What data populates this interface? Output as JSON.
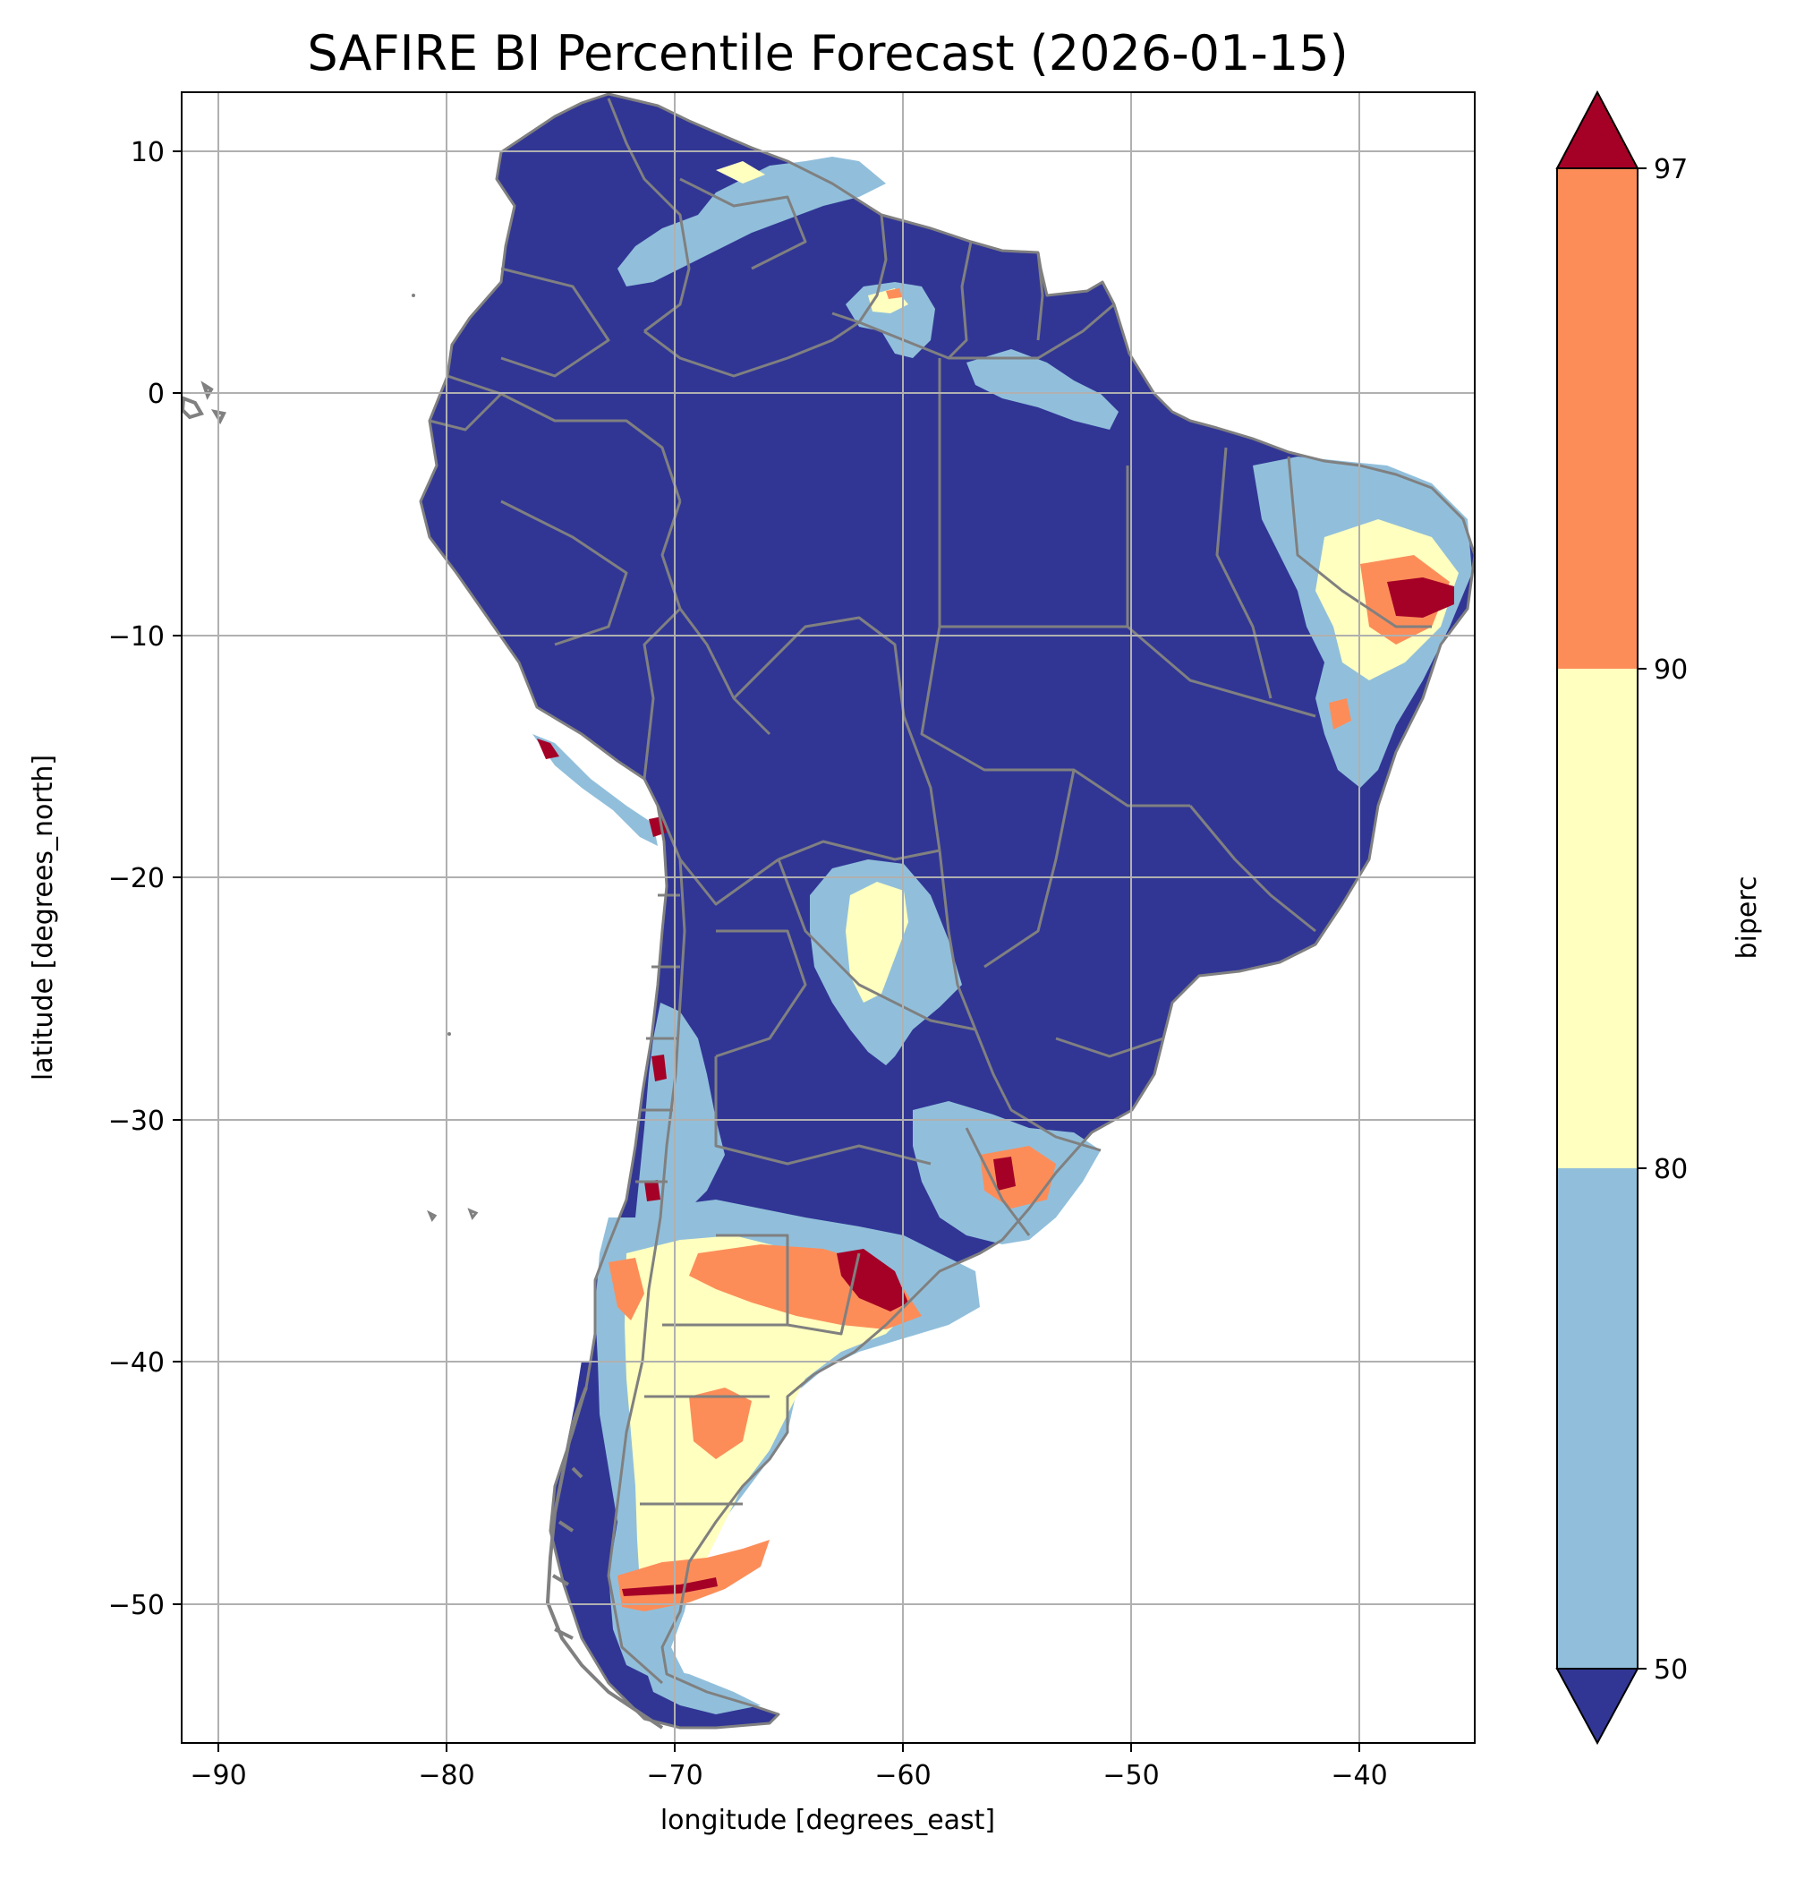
{
  "map": {
    "title": "SAFIRE BI Percentile Forecast (2026-01-15)",
    "xlabel": "longitude [degrees_east]",
    "ylabel": "latitude [degrees_north]",
    "x_ticks": [
      "−90",
      "−80",
      "−70",
      "−60",
      "−50",
      "−40"
    ],
    "y_ticks": [
      "10",
      "0",
      "−10",
      "−20",
      "−30",
      "−40",
      "−50"
    ],
    "x_tick_values": [
      -90,
      -80,
      -70,
      -60,
      -50,
      -40
    ],
    "y_tick_values": [
      10,
      0,
      -10,
      -20,
      -30,
      -40,
      -50
    ],
    "xlim": [
      -91.5,
      -35.0
    ],
    "ylim": [
      -55.8,
      12.4
    ],
    "grid": true,
    "border_color": "#808080",
    "ocean_color": "#ffffff"
  },
  "colorbar": {
    "label": "biperc",
    "tick_labels": [
      "97",
      "90",
      "80",
      "50"
    ],
    "bins": [
      {
        "range": "<50",
        "color": "#313695"
      },
      {
        "range": "50-80",
        "color": "#91bfdb"
      },
      {
        "range": "80-90",
        "color": "#ffffbf"
      },
      {
        "range": "90-97",
        "color": "#fc8d59"
      },
      {
        "range": ">97",
        "color": "#a50026"
      }
    ]
  }
}
